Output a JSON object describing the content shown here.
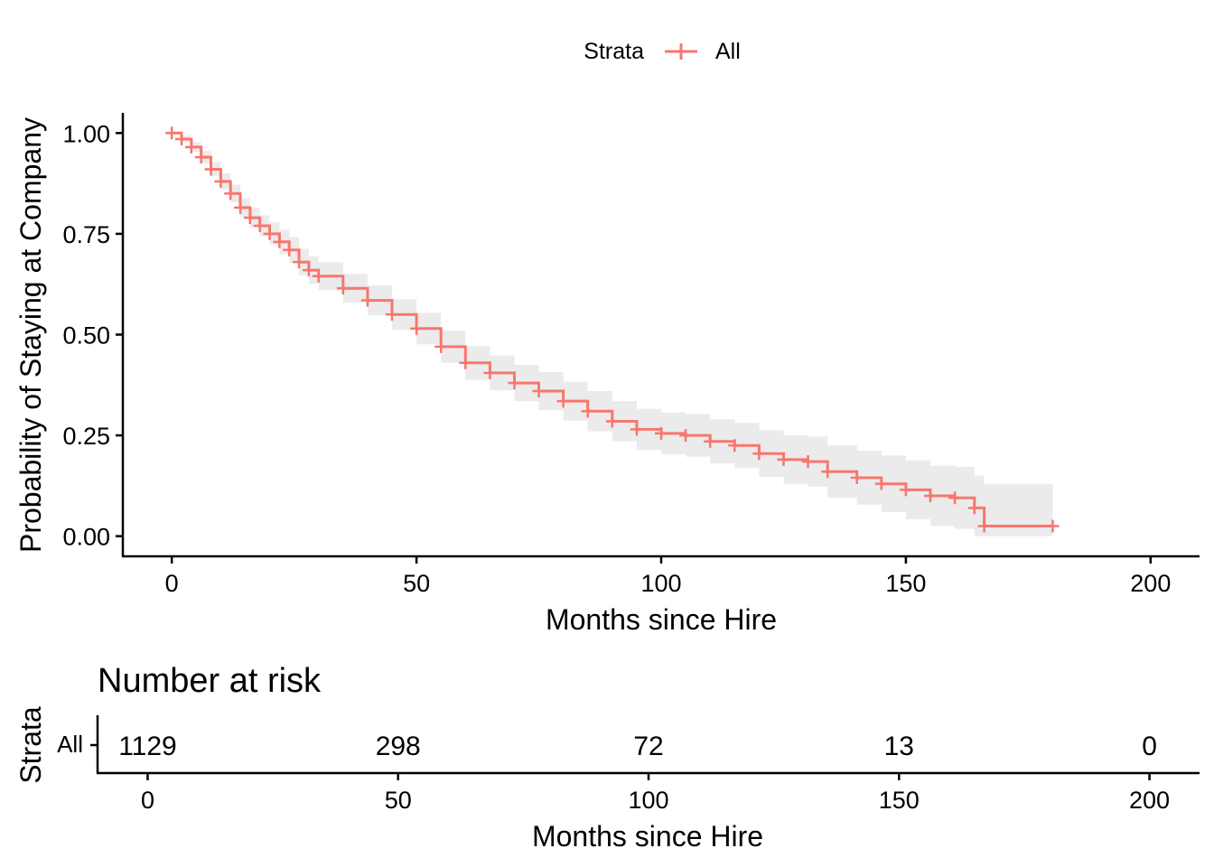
{
  "colors": {
    "curve": "#F8766D",
    "band": "#EBEBEB",
    "axis": "#000000"
  },
  "legend": {
    "title": "Strata",
    "items": [
      "All"
    ]
  },
  "chart_data": [
    {
      "type": "line",
      "subtype": "kaplan-meier step curve",
      "legend_placement": "top",
      "grid": false,
      "xlabel": "Months since Hire",
      "ylabel": "Probability of Staying at Company",
      "xlim": [
        -10,
        210
      ],
      "ylim": [
        -0.05,
        1.05
      ],
      "x_ticks": [
        0,
        50,
        100,
        150,
        200
      ],
      "x_tick_labels": [
        "0",
        "50",
        "100",
        "150",
        "200"
      ],
      "y_ticks": [
        0,
        0.25,
        0.5,
        0.75,
        1.0
      ],
      "y_tick_labels": [
        "0.00",
        "0.25",
        "0.50",
        "0.75",
        "1.00"
      ],
      "series": [
        {
          "name": "All",
          "x": [
            0,
            2,
            4,
            6,
            8,
            10,
            12,
            14,
            16,
            18,
            20,
            22,
            24,
            26,
            28,
            30,
            35,
            40,
            45,
            50,
            55,
            60,
            65,
            70,
            75,
            80,
            85,
            90,
            95,
            100,
            105,
            110,
            115,
            120,
            125,
            130,
            134,
            140,
            145,
            150,
            155,
            160,
            164,
            166,
            180
          ],
          "y": [
            1.0,
            0.985,
            0.965,
            0.94,
            0.91,
            0.88,
            0.85,
            0.815,
            0.79,
            0.77,
            0.75,
            0.73,
            0.71,
            0.68,
            0.66,
            0.645,
            0.615,
            0.585,
            0.55,
            0.515,
            0.47,
            0.43,
            0.405,
            0.38,
            0.36,
            0.335,
            0.31,
            0.285,
            0.265,
            0.255,
            0.25,
            0.235,
            0.225,
            0.205,
            0.19,
            0.185,
            0.16,
            0.145,
            0.13,
            0.115,
            0.1,
            0.095,
            0.07,
            0.025,
            0.025
          ],
          "upper": [
            1.0,
            0.993,
            0.977,
            0.955,
            0.928,
            0.9,
            0.872,
            0.838,
            0.815,
            0.796,
            0.778,
            0.76,
            0.742,
            0.713,
            0.694,
            0.68,
            0.651,
            0.622,
            0.588,
            0.554,
            0.51,
            0.472,
            0.448,
            0.425,
            0.407,
            0.383,
            0.36,
            0.335,
            0.316,
            0.307,
            0.303,
            0.29,
            0.281,
            0.263,
            0.25,
            0.247,
            0.225,
            0.212,
            0.2,
            0.188,
            0.175,
            0.172,
            0.15,
            0.13,
            0.13
          ],
          "lower": [
            1.0,
            0.977,
            0.953,
            0.925,
            0.892,
            0.86,
            0.828,
            0.792,
            0.765,
            0.744,
            0.722,
            0.7,
            0.678,
            0.647,
            0.626,
            0.61,
            0.579,
            0.548,
            0.512,
            0.476,
            0.43,
            0.388,
            0.362,
            0.335,
            0.313,
            0.287,
            0.26,
            0.235,
            0.214,
            0.203,
            0.197,
            0.18,
            0.169,
            0.147,
            0.13,
            0.123,
            0.095,
            0.078,
            0.06,
            0.042,
            0.025,
            0.018,
            0.0,
            0.0,
            0.0
          ]
        }
      ]
    },
    {
      "type": "table",
      "title": "Number at risk",
      "ylabel": "Strata",
      "xlabel": "Months since Hire",
      "xlim": [
        -10,
        210
      ],
      "x_ticks": [
        0,
        50,
        100,
        150,
        200
      ],
      "x_tick_labels": [
        "0",
        "50",
        "100",
        "150",
        "200"
      ],
      "rows": [
        {
          "stratum": "All",
          "times": [
            0,
            50,
            100,
            150,
            200
          ],
          "values": [
            "1129",
            "298",
            "72",
            "13",
            "0"
          ]
        }
      ]
    }
  ]
}
